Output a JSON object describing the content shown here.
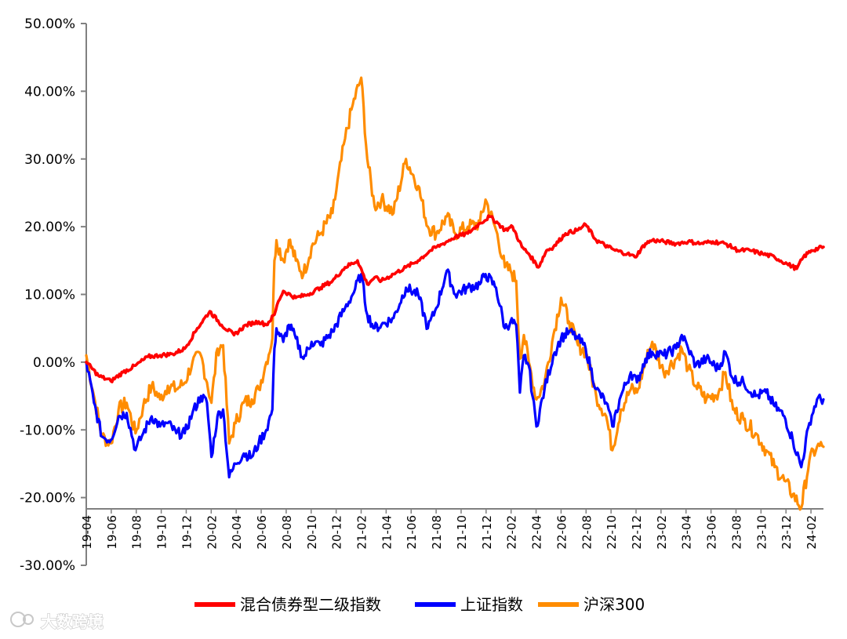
{
  "chart_data": {
    "type": "line",
    "title": "",
    "xlabel": "",
    "ylabel": "",
    "ylim": [
      -30,
      50
    ],
    "y_ticks": [
      50,
      40,
      30,
      20,
      10,
      0,
      -10,
      -20,
      -30
    ],
    "y_tick_labels": [
      "50.00%",
      "40.00%",
      "30.00%",
      "20.00%",
      "10.00%",
      "0.00%",
      "-10.00%",
      "-20.00%",
      "-30.00%"
    ],
    "x_ticks": [
      "19-04",
      "19-06",
      "19-08",
      "19-10",
      "19-12",
      "20-02",
      "20-04",
      "20-06",
      "20-08",
      "20-10",
      "20-12",
      "21-02",
      "21-04",
      "21-06",
      "21-08",
      "21-10",
      "21-12",
      "22-02",
      "22-04",
      "22-06",
      "22-08",
      "22-10",
      "22-12",
      "23-02",
      "23-04",
      "23-06",
      "23-08",
      "23-10",
      "23-12",
      "24-02"
    ],
    "x_start": "2019-04-01",
    "x_end": "2024-03-31",
    "legend_position": "bottom",
    "grid": false,
    "series": [
      {
        "name": "混合债券型二级指数",
        "color": "#ff0000",
        "points": [
          [
            "2019-04-01",
            0.0
          ],
          [
            "2019-05-01",
            -2.0
          ],
          [
            "2019-06-01",
            -2.8
          ],
          [
            "2019-07-01",
            -1.5
          ],
          [
            "2019-08-01",
            -0.5
          ],
          [
            "2019-09-01",
            0.8
          ],
          [
            "2019-10-01",
            1.0
          ],
          [
            "2019-11-01",
            1.2
          ],
          [
            "2019-12-01",
            2.0
          ],
          [
            "2020-01-01",
            5.0
          ],
          [
            "2020-02-01",
            7.5
          ],
          [
            "2020-03-01",
            5.5
          ],
          [
            "2020-04-01",
            4.0
          ],
          [
            "2020-05-01",
            5.5
          ],
          [
            "2020-06-01",
            6.0
          ],
          [
            "2020-06-20",
            5.5
          ],
          [
            "2020-07-10",
            7.0
          ],
          [
            "2020-07-20",
            9.0
          ],
          [
            "2020-08-01",
            10.5
          ],
          [
            "2020-09-01",
            9.5
          ],
          [
            "2020-10-01",
            10.0
          ],
          [
            "2020-11-01",
            11.0
          ],
          [
            "2020-12-01",
            12.0
          ],
          [
            "2021-01-01",
            14.0
          ],
          [
            "2021-02-01",
            15.0
          ],
          [
            "2021-02-25",
            11.5
          ],
          [
            "2021-03-15",
            12.5
          ],
          [
            "2021-04-01",
            12.0
          ],
          [
            "2021-05-01",
            13.0
          ],
          [
            "2021-06-01",
            14.0
          ],
          [
            "2021-07-01",
            15.0
          ],
          [
            "2021-08-01",
            16.5
          ],
          [
            "2021-09-01",
            17.5
          ],
          [
            "2021-10-01",
            18.5
          ],
          [
            "2021-11-01",
            19.0
          ],
          [
            "2021-12-01",
            20.5
          ],
          [
            "2021-12-25",
            21.5
          ],
          [
            "2022-01-15",
            20.5
          ],
          [
            "2022-02-01",
            19.5
          ],
          [
            "2022-02-20",
            20.0
          ],
          [
            "2022-03-15",
            17.0
          ],
          [
            "2022-04-01",
            16.0
          ],
          [
            "2022-04-25",
            14.0
          ],
          [
            "2022-05-15",
            16.5
          ],
          [
            "2022-06-01",
            17.0
          ],
          [
            "2022-07-01",
            19.0
          ],
          [
            "2022-08-01",
            19.5
          ],
          [
            "2022-08-20",
            20.3
          ],
          [
            "2022-09-15",
            18.0
          ],
          [
            "2022-10-15",
            17.0
          ],
          [
            "2022-11-01",
            16.5
          ],
          [
            "2022-12-01",
            16.0
          ],
          [
            "2022-12-20",
            15.5
          ],
          [
            "2023-01-15",
            17.5
          ],
          [
            "2023-02-01",
            18.0
          ],
          [
            "2023-03-01",
            17.8
          ],
          [
            "2023-04-01",
            17.5
          ],
          [
            "2023-05-01",
            17.8
          ],
          [
            "2023-06-01",
            17.5
          ],
          [
            "2023-07-01",
            17.8
          ],
          [
            "2023-08-01",
            17.5
          ],
          [
            "2023-09-01",
            16.5
          ],
          [
            "2023-10-01",
            16.5
          ],
          [
            "2023-11-01",
            16.0
          ],
          [
            "2023-12-01",
            15.5
          ],
          [
            "2024-01-01",
            14.5
          ],
          [
            "2024-01-25",
            13.8
          ],
          [
            "2024-02-10",
            15.5
          ],
          [
            "2024-03-01",
            16.5
          ],
          [
            "2024-03-31",
            17.0
          ]
        ]
      },
      {
        "name": "上证指数",
        "color": "#0000ff",
        "points": [
          [
            "2019-04-01",
            0.0
          ],
          [
            "2019-04-20",
            -6.0
          ],
          [
            "2019-05-10",
            -11.0
          ],
          [
            "2019-06-01",
            -11.5
          ],
          [
            "2019-06-20",
            -8.0
          ],
          [
            "2019-07-10",
            -7.5
          ],
          [
            "2019-08-01",
            -13.0
          ],
          [
            "2019-08-20",
            -10.5
          ],
          [
            "2019-09-10",
            -8.0
          ],
          [
            "2019-10-01",
            -9.5
          ],
          [
            "2019-10-20",
            -9.0
          ],
          [
            "2019-11-10",
            -10.5
          ],
          [
            "2019-12-01",
            -10.5
          ],
          [
            "2019-12-20",
            -7.5
          ],
          [
            "2020-01-10",
            -5.0
          ],
          [
            "2020-01-25",
            -6.0
          ],
          [
            "2020-02-05",
            -14.0
          ],
          [
            "2020-02-20",
            -8.0
          ],
          [
            "2020-03-05",
            -7.0
          ],
          [
            "2020-03-20",
            -17.0
          ],
          [
            "2020-04-05",
            -15.0
          ],
          [
            "2020-04-25",
            -13.5
          ],
          [
            "2020-05-15",
            -14.0
          ],
          [
            "2020-06-01",
            -12.0
          ],
          [
            "2020-06-20",
            -10.0
          ],
          [
            "2020-07-05",
            -7.0
          ],
          [
            "2020-07-10",
            2.0
          ],
          [
            "2020-07-15",
            5.0
          ],
          [
            "2020-08-01",
            3.0
          ],
          [
            "2020-08-15",
            5.5
          ],
          [
            "2020-09-01",
            3.5
          ],
          [
            "2020-09-20",
            0.5
          ],
          [
            "2020-10-10",
            3.0
          ],
          [
            "2020-11-01",
            2.5
          ],
          [
            "2020-12-01",
            4.5
          ],
          [
            "2021-01-01",
            8.0
          ],
          [
            "2021-01-20",
            10.0
          ],
          [
            "2021-02-10",
            13.0
          ],
          [
            "2021-02-25",
            7.0
          ],
          [
            "2021-03-15",
            5.0
          ],
          [
            "2021-04-01",
            5.5
          ],
          [
            "2021-05-01",
            6.5
          ],
          [
            "2021-06-01",
            11.0
          ],
          [
            "2021-07-01",
            10.0
          ],
          [
            "2021-07-25",
            5.0
          ],
          [
            "2021-08-15",
            8.0
          ],
          [
            "2021-09-10",
            13.5
          ],
          [
            "2021-10-01",
            10.0
          ],
          [
            "2021-11-01",
            11.0
          ],
          [
            "2021-12-01",
            11.5
          ],
          [
            "2021-12-15",
            13.0
          ],
          [
            "2022-01-10",
            11.0
          ],
          [
            "2022-02-01",
            5.0
          ],
          [
            "2022-02-15",
            6.0
          ],
          [
            "2022-03-01",
            5.5
          ],
          [
            "2022-03-10",
            -4.5
          ],
          [
            "2022-03-20",
            1.0
          ],
          [
            "2022-04-01",
            -0.5
          ],
          [
            "2022-04-20",
            -9.5
          ],
          [
            "2022-05-10",
            -4.0
          ],
          [
            "2022-06-01",
            1.0
          ],
          [
            "2022-06-20",
            3.5
          ],
          [
            "2022-07-10",
            4.5
          ],
          [
            "2022-08-01",
            3.5
          ],
          [
            "2022-08-20",
            2.0
          ],
          [
            "2022-09-15",
            -4.0
          ],
          [
            "2022-10-10",
            -6.0
          ],
          [
            "2022-10-25",
            -9.5
          ],
          [
            "2022-11-15",
            -5.0
          ],
          [
            "2022-12-10",
            -1.5
          ],
          [
            "2022-12-25",
            -3.0
          ],
          [
            "2023-01-15",
            0.5
          ],
          [
            "2023-02-01",
            1.5
          ],
          [
            "2023-03-01",
            1.0
          ],
          [
            "2023-04-01",
            2.0
          ],
          [
            "2023-04-15",
            4.0
          ],
          [
            "2023-05-01",
            2.0
          ],
          [
            "2023-05-20",
            -0.5
          ],
          [
            "2023-06-15",
            0.5
          ],
          [
            "2023-07-15",
            -1.0
          ],
          [
            "2023-08-01",
            1.5
          ],
          [
            "2023-08-20",
            -2.5
          ],
          [
            "2023-09-15",
            -3.0
          ],
          [
            "2023-10-15",
            -5.0
          ],
          [
            "2023-11-10",
            -4.5
          ],
          [
            "2023-12-01",
            -6.5
          ],
          [
            "2023-12-25",
            -8.0
          ],
          [
            "2024-01-15",
            -11.5
          ],
          [
            "2024-02-05",
            -15.5
          ],
          [
            "2024-02-25",
            -9.0
          ],
          [
            "2024-03-15",
            -5.5
          ],
          [
            "2024-03-31",
            -5.5
          ]
        ]
      },
      {
        "name": "沪深300",
        "color": "#ff8c00",
        "points": [
          [
            "2019-04-01",
            1.0
          ],
          [
            "2019-04-20",
            -5.0
          ],
          [
            "2019-05-10",
            -11.0
          ],
          [
            "2019-06-01",
            -12.0
          ],
          [
            "2019-06-20",
            -7.0
          ],
          [
            "2019-07-10",
            -6.0
          ],
          [
            "2019-08-01",
            -10.5
          ],
          [
            "2019-08-20",
            -6.5
          ],
          [
            "2019-09-10",
            -3.5
          ],
          [
            "2019-10-01",
            -5.5
          ],
          [
            "2019-10-20",
            -3.5
          ],
          [
            "2019-11-10",
            -4.0
          ],
          [
            "2019-12-01",
            -3.0
          ],
          [
            "2019-12-20",
            0.0
          ],
          [
            "2020-01-10",
            1.0
          ],
          [
            "2020-01-25",
            -3.0
          ],
          [
            "2020-02-05",
            -6.0
          ],
          [
            "2020-02-20",
            2.0
          ],
          [
            "2020-03-05",
            2.5
          ],
          [
            "2020-03-20",
            -12.0
          ],
          [
            "2020-04-05",
            -9.0
          ],
          [
            "2020-04-25",
            -6.0
          ],
          [
            "2020-05-15",
            -5.5
          ],
          [
            "2020-06-01",
            -4.0
          ],
          [
            "2020-06-20",
            0.0
          ],
          [
            "2020-07-05",
            3.5
          ],
          [
            "2020-07-10",
            15.0
          ],
          [
            "2020-07-15",
            18.0
          ],
          [
            "2020-08-01",
            15.0
          ],
          [
            "2020-08-15",
            18.0
          ],
          [
            "2020-09-01",
            15.0
          ],
          [
            "2020-09-20",
            13.0
          ],
          [
            "2020-10-10",
            17.0
          ],
          [
            "2020-11-01",
            19.0
          ],
          [
            "2020-12-01",
            22.0
          ],
          [
            "2021-01-01",
            33.0
          ],
          [
            "2021-01-20",
            38.0
          ],
          [
            "2021-02-10",
            42.0
          ],
          [
            "2021-02-25",
            30.0
          ],
          [
            "2021-03-15",
            23.0
          ],
          [
            "2021-04-01",
            24.0
          ],
          [
            "2021-05-01",
            22.0
          ],
          [
            "2021-06-01",
            30.0
          ],
          [
            "2021-07-01",
            26.0
          ],
          [
            "2021-07-25",
            20.0
          ],
          [
            "2021-08-15",
            19.0
          ],
          [
            "2021-09-10",
            21.5
          ],
          [
            "2021-10-01",
            19.0
          ],
          [
            "2021-11-01",
            20.0
          ],
          [
            "2021-12-01",
            20.5
          ],
          [
            "2021-12-15",
            24.0
          ],
          [
            "2022-01-10",
            19.5
          ],
          [
            "2022-02-01",
            14.0
          ],
          [
            "2022-02-15",
            13.5
          ],
          [
            "2022-03-01",
            12.0
          ],
          [
            "2022-03-10",
            0.5
          ],
          [
            "2022-03-20",
            4.0
          ],
          [
            "2022-04-01",
            0.0
          ],
          [
            "2022-04-20",
            -5.5
          ],
          [
            "2022-05-10",
            -3.0
          ],
          [
            "2022-06-01",
            4.0
          ],
          [
            "2022-06-20",
            9.5
          ],
          [
            "2022-07-10",
            6.0
          ],
          [
            "2022-08-01",
            2.5
          ],
          [
            "2022-08-20",
            1.5
          ],
          [
            "2022-09-15",
            -5.0
          ],
          [
            "2022-10-10",
            -8.0
          ],
          [
            "2022-10-25",
            -13.0
          ],
          [
            "2022-11-15",
            -7.0
          ],
          [
            "2022-12-10",
            -4.0
          ],
          [
            "2022-12-25",
            -4.5
          ],
          [
            "2023-01-15",
            0.0
          ],
          [
            "2023-02-01",
            3.0
          ],
          [
            "2023-03-01",
            -1.5
          ],
          [
            "2023-04-01",
            0.5
          ],
          [
            "2023-04-15",
            2.0
          ],
          [
            "2023-05-01",
            -1.0
          ],
          [
            "2023-05-20",
            -3.5
          ],
          [
            "2023-06-15",
            -5.5
          ],
          [
            "2023-07-15",
            -4.5
          ],
          [
            "2023-08-01",
            -1.5
          ],
          [
            "2023-08-20",
            -7.0
          ],
          [
            "2023-09-15",
            -8.5
          ],
          [
            "2023-10-15",
            -10.5
          ],
          [
            "2023-11-10",
            -13.0
          ],
          [
            "2023-12-01",
            -15.5
          ],
          [
            "2023-12-25",
            -17.5
          ],
          [
            "2024-01-15",
            -19.5
          ],
          [
            "2024-02-05",
            -21.5
          ],
          [
            "2024-02-25",
            -14.5
          ],
          [
            "2024-03-15",
            -12.5
          ],
          [
            "2024-03-31",
            -12.5
          ]
        ]
      }
    ]
  },
  "watermark": {
    "icon": "brand-logo-icon",
    "text": "大数跨境"
  }
}
